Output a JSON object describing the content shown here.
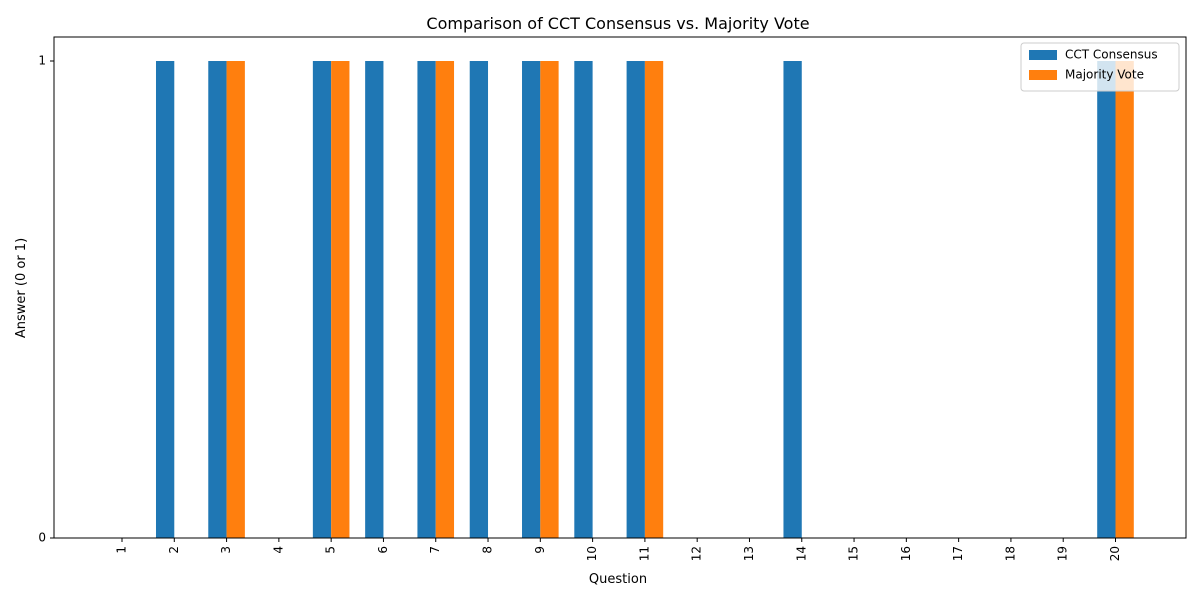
{
  "chart_data": {
    "type": "bar",
    "title": "Comparison of CCT Consensus vs. Majority Vote",
    "xlabel": "Question",
    "ylabel": "Answer (0 or 1)",
    "categories": [
      "1",
      "2",
      "3",
      "4",
      "5",
      "6",
      "7",
      "8",
      "9",
      "10",
      "11",
      "12",
      "13",
      "14",
      "15",
      "16",
      "17",
      "18",
      "19",
      "20"
    ],
    "series": [
      {
        "name": "CCT Consensus",
        "color": "#1f77b4",
        "values": [
          0,
          1,
          1,
          0,
          1,
          1,
          1,
          1,
          1,
          1,
          1,
          0,
          0,
          1,
          0,
          0,
          0,
          0,
          0,
          1
        ]
      },
      {
        "name": "Majority Vote",
        "color": "#ff7f0e",
        "values": [
          0,
          0,
          1,
          0,
          1,
          0,
          1,
          0,
          1,
          0,
          1,
          0,
          0,
          0,
          0,
          0,
          0,
          0,
          0,
          1
        ]
      }
    ],
    "ylim": [
      0,
      1
    ],
    "yticks": [
      "0",
      "1"
    ],
    "grid": false,
    "legend_position": "top-right",
    "x_tick_rotation": "vertical"
  }
}
